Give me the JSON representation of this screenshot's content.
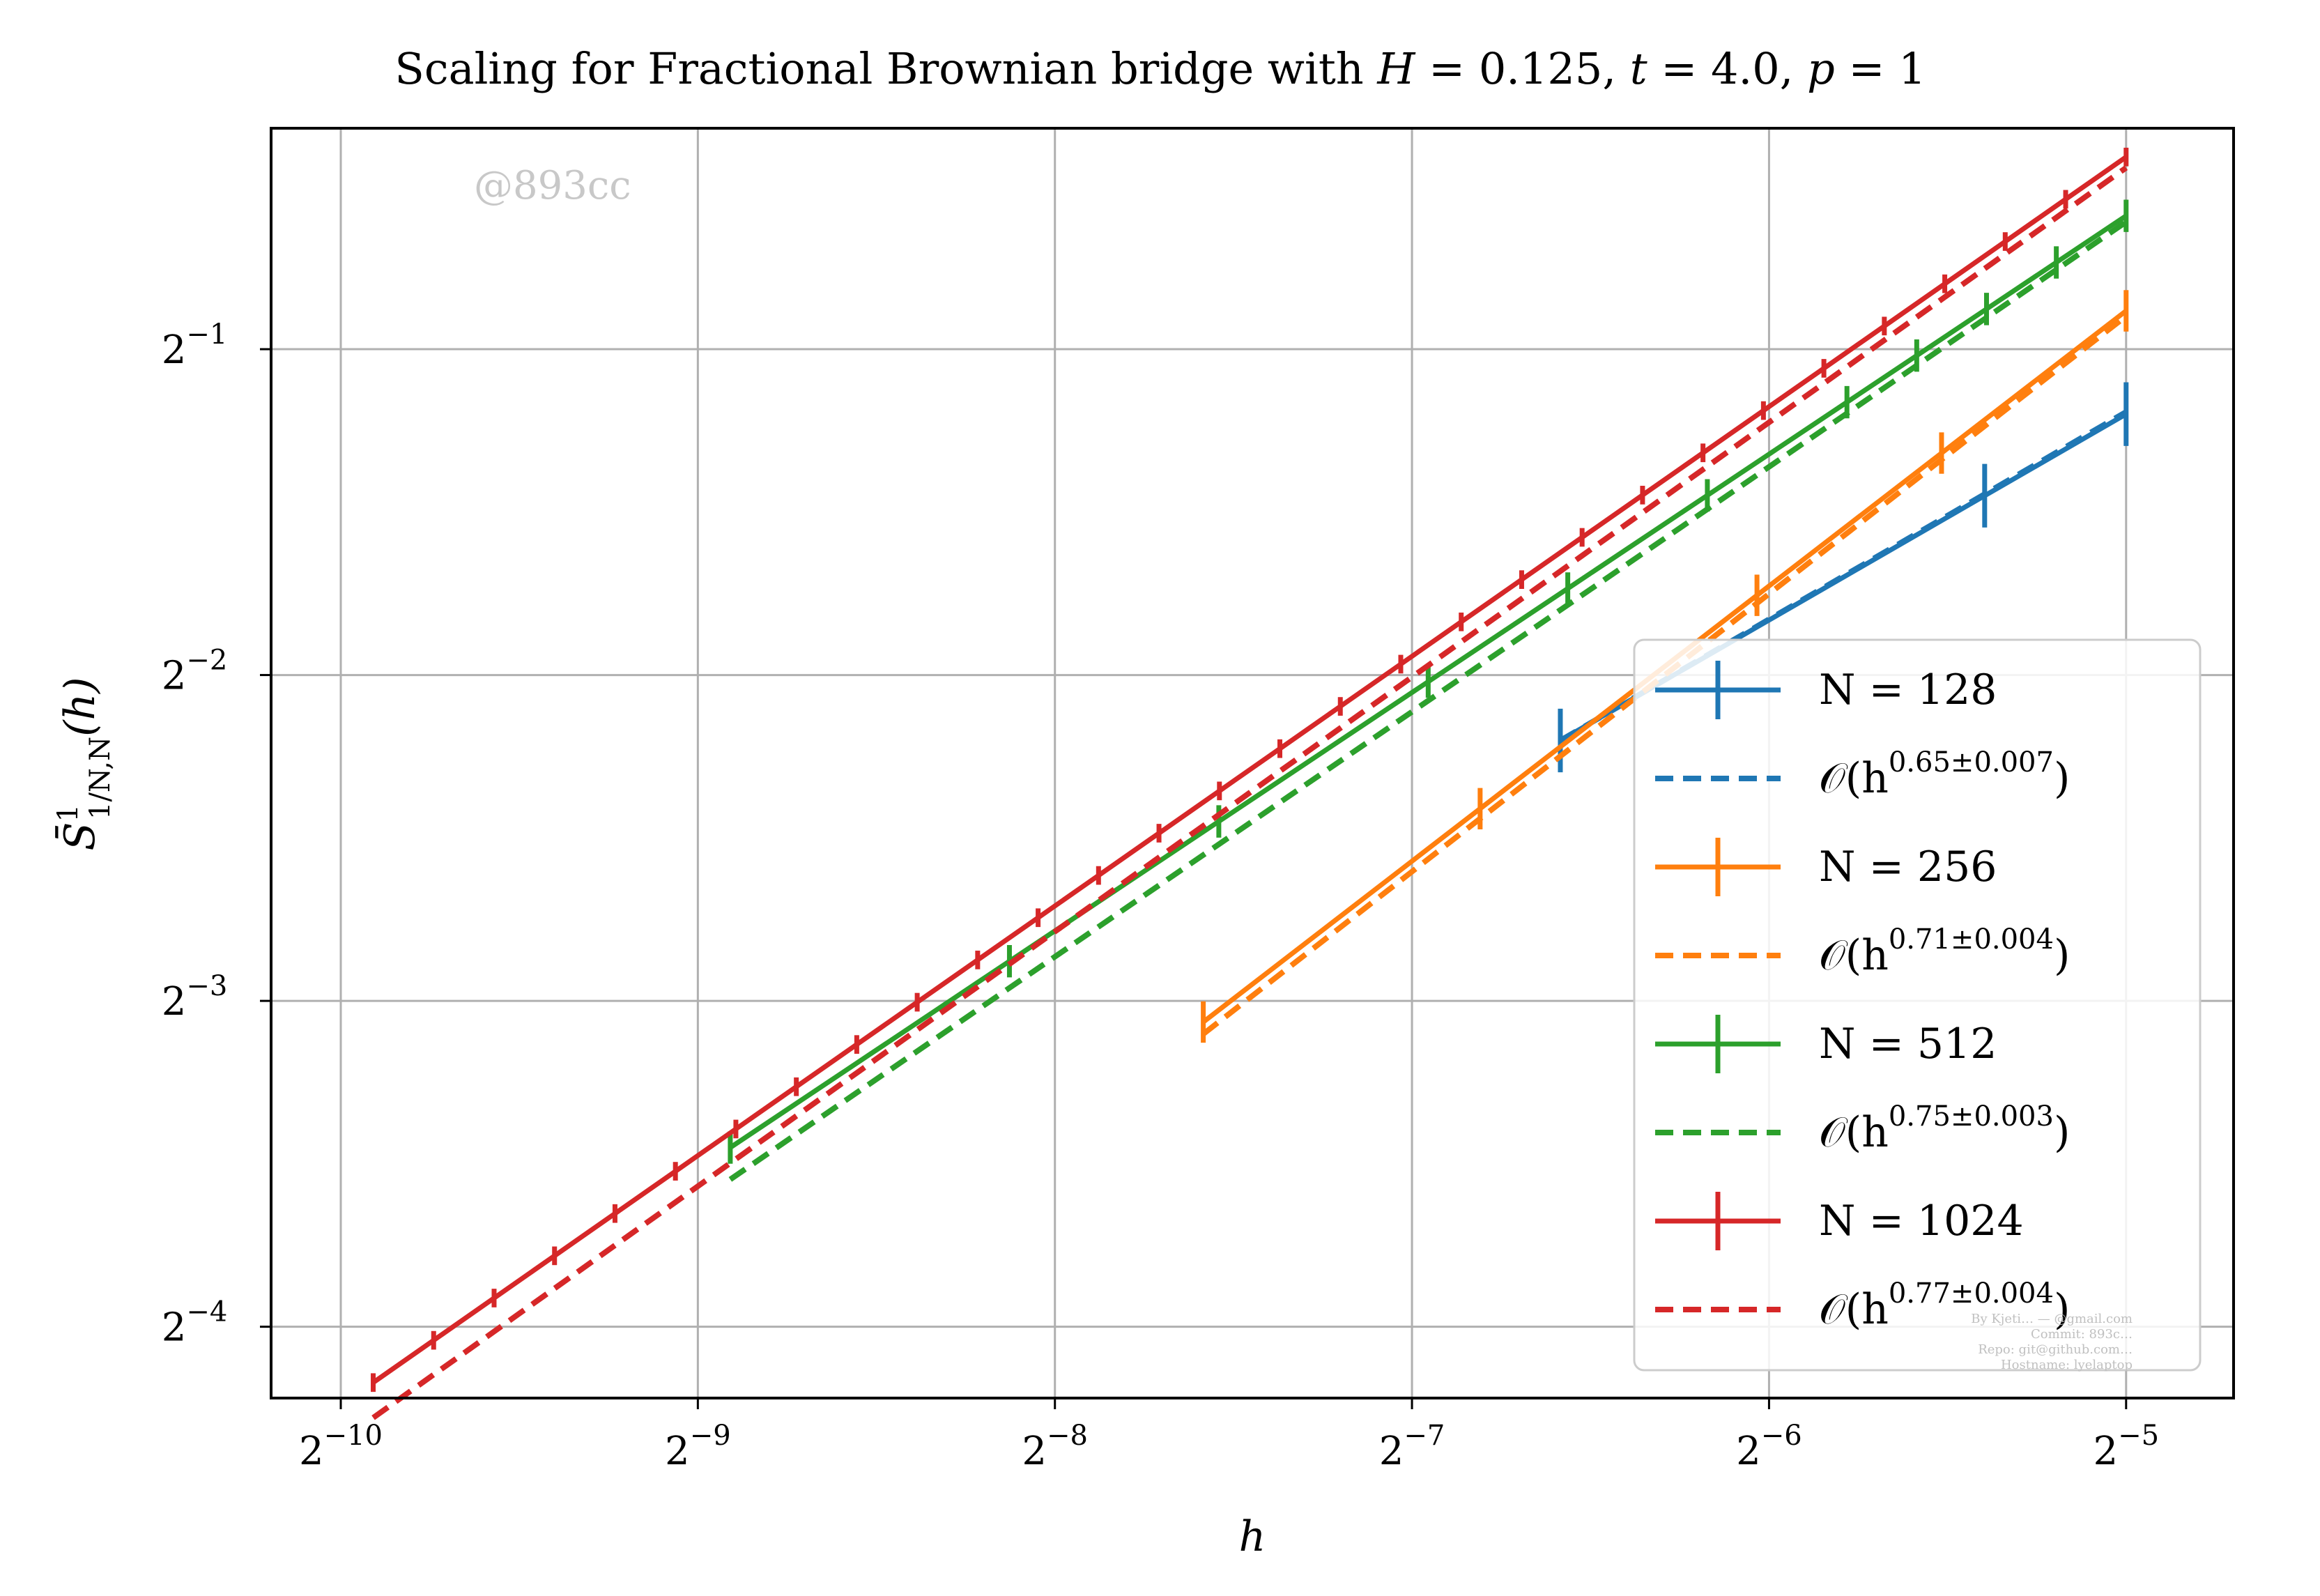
{
  "chart_data": {
    "type": "line",
    "title": "Scaling for Fractional Brownian bridge with H = 0.125, t = 4.0, p = 1",
    "title_parts": {
      "prefix": "Scaling for Fractional Brownian bridge with ",
      "H_sym": "H",
      "H_rest": " = 0.125, ",
      "t_sym": "t",
      "t_rest": " = 4.0, ",
      "p_sym": "p",
      "p_rest": " = 1"
    },
    "xlabel": "h",
    "ylabel": "S̄¹₁/N,N(h)",
    "ylabel_parts": {
      "base": "S̄",
      "sup": "1",
      "sub": "1/N,N",
      "tail": "(h)"
    },
    "x_scale": "log2",
    "y_scale": "log2",
    "xlim": [
      0.000853,
      0.0385
    ],
    "ylim": [
      0.0537,
      0.8
    ],
    "x_ticks": [
      {
        "base": "2",
        "exp": "−10",
        "value": 0.0009765625
      },
      {
        "base": "2",
        "exp": "−9",
        "value": 0.001953125
      },
      {
        "base": "2",
        "exp": "−8",
        "value": 0.00390625
      },
      {
        "base": "2",
        "exp": "−7",
        "value": 0.0078125
      },
      {
        "base": "2",
        "exp": "−6",
        "value": 0.015625
      },
      {
        "base": "2",
        "exp": "−5",
        "value": 0.03125
      }
    ],
    "y_ticks": [
      {
        "base": "2",
        "exp": "−4",
        "value": 0.0625
      },
      {
        "base": "2",
        "exp": "−3",
        "value": 0.125
      },
      {
        "base": "2",
        "exp": "−2",
        "value": 0.25
      },
      {
        "base": "2",
        "exp": "−1",
        "value": 0.5
      }
    ],
    "grid": true,
    "legend_position": "center-right",
    "series": [
      {
        "N": 128,
        "name": "N = 128",
        "fit_label_base": "𝒪(h",
        "fit_exponent": "0.65±0.007",
        "fit_label_close": ")",
        "color": "#1f77b4",
        "x_min": 0.01042,
        "x_max": 0.03125,
        "n_points": 5,
        "y_start": 0.2175,
        "y_end": 0.4355,
        "fit_start": 0.2175,
        "fit_end": 0.4375,
        "err_rel": 0.07,
        "err_indices": [
          0,
          3,
          4
        ]
      },
      {
        "N": 256,
        "name": "N = 256",
        "fit_label_base": "𝒪(h",
        "fit_exponent": "0.71±0.004",
        "fit_label_close": ")",
        "color": "#ff7f0e",
        "x_min": 0.00521,
        "x_max": 0.03125,
        "n_points": 11,
        "y_start": 0.1195,
        "y_end": 0.5425,
        "fit_start": 0.1165,
        "fit_end": 0.5365,
        "err_rel": 0.045,
        "err_indices": [
          0,
          3,
          6,
          8,
          10
        ]
      },
      {
        "N": 512,
        "name": "N = 512",
        "fit_label_base": "𝒪(h",
        "fit_exponent": "0.75±0.003",
        "fit_label_close": ")",
        "color": "#2ca02c",
        "x_min": 0.00208,
        "x_max": 0.03125,
        "n_points": 21,
        "y_start": 0.0915,
        "y_end": 0.664,
        "fit_start": 0.0855,
        "fit_end": 0.6555,
        "err_rel": 0.035,
        "err_indices": [
          0,
          4,
          7,
          10,
          12,
          14,
          16,
          17,
          18,
          19,
          20
        ]
      },
      {
        "N": 1024,
        "name": "N = 1024",
        "fit_label_base": "𝒪(h",
        "fit_exponent": "0.77±0.004",
        "fit_label_close": ")",
        "color": "#d62728",
        "x_min": 0.00104,
        "x_max": 0.03125,
        "n_points": 30,
        "y_start": 0.0555,
        "y_end": 0.7525,
        "fit_start": 0.0515,
        "fit_end": 0.7355,
        "err_rel": 0.02,
        "err_indices": "all"
      }
    ]
  },
  "watermark": "@893cc",
  "footer_lines": [
    "By Kjeti… — @gmail.com",
    "Commit: 893c…",
    "Repo: git@github.com…",
    "Hostname: lyelaptop"
  ]
}
